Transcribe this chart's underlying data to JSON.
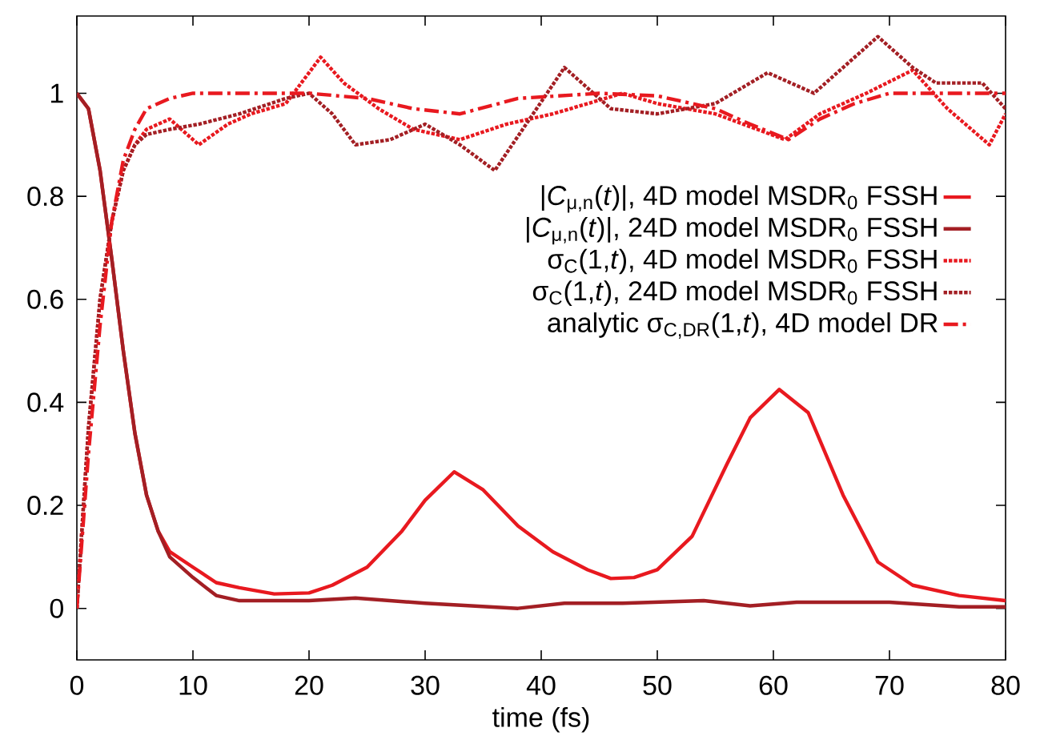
{
  "chart_data": {
    "type": "line",
    "xlabel": "time (fs)",
    "xlim": [
      0,
      80
    ],
    "ylim": [
      -0.1,
      1.15
    ],
    "xticks": [
      0,
      10,
      20,
      30,
      40,
      50,
      60,
      70,
      80
    ],
    "yticks": [
      0,
      0.2,
      0.4,
      0.6,
      0.8,
      1
    ],
    "legend": "right",
    "grid": false,
    "marker": "none",
    "series": [
      {
        "name": "|*C*$_{μ,n}$(*t*)|, 4D model MSDR$_{0}$ FSSH",
        "color": "#e8191f",
        "line_style": "solid",
        "x": [
          0,
          1,
          2,
          3,
          4,
          5,
          6,
          7,
          8,
          10,
          12,
          14,
          17,
          20,
          22,
          25,
          28,
          30,
          32.5,
          35,
          38,
          41,
          44,
          46,
          48,
          50,
          53,
          56,
          58,
          60.5,
          63,
          66,
          69,
          72,
          76,
          80
        ],
        "values": [
          1,
          0.97,
          0.85,
          0.68,
          0.5,
          0.34,
          0.22,
          0.15,
          0.11,
          0.08,
          0.05,
          0.04,
          0.028,
          0.03,
          0.045,
          0.08,
          0.15,
          0.21,
          0.265,
          0.23,
          0.16,
          0.11,
          0.075,
          0.058,
          0.06,
          0.075,
          0.14,
          0.28,
          0.37,
          0.425,
          0.38,
          0.22,
          0.09,
          0.045,
          0.025,
          0.015
        ]
      },
      {
        "name": "|*C*$_{μ,n}$(*t*)|, 24D model MSDR$_{0}$ FSSH",
        "color": "#a31f24",
        "line_style": "solid",
        "x": [
          0,
          1,
          2,
          3,
          4,
          5,
          6,
          7,
          8,
          10,
          12,
          14,
          20,
          24,
          30,
          38,
          42,
          47,
          54,
          58,
          62,
          70,
          76,
          80
        ],
        "values": [
          1,
          0.97,
          0.85,
          0.68,
          0.5,
          0.34,
          0.22,
          0.15,
          0.1,
          0.06,
          0.025,
          0.015,
          0.015,
          0.02,
          0.01,
          0.0,
          0.01,
          0.01,
          0.015,
          0.005,
          0.012,
          0.012,
          0.003,
          0.003
        ]
      },
      {
        "name": "σ$_{C}$(1,*t*), 4D model MSDR$_{0}$ FSSH",
        "color": "#e8191f",
        "line_style": "dotted",
        "x": [
          0,
          1,
          2,
          3,
          4,
          5,
          6,
          8,
          10.5,
          13,
          15,
          18,
          21,
          23,
          26,
          29,
          33,
          37,
          41,
          44,
          47,
          50,
          55,
          61,
          64,
          68,
          72,
          75,
          78.6,
          80
        ],
        "values": [
          0,
          0.35,
          0.6,
          0.75,
          0.85,
          0.9,
          0.93,
          0.95,
          0.9,
          0.94,
          0.96,
          0.98,
          1.07,
          1.02,
          0.97,
          0.93,
          0.91,
          0.94,
          0.96,
          0.98,
          1.0,
          0.98,
          0.96,
          0.91,
          0.96,
          1.0,
          1.045,
          0.97,
          0.9,
          0.96
        ]
      },
      {
        "name": "σ$_{C}$(1,*t*), 24D model MSDR$_{0}$ FSSH",
        "color": "#a31f24",
        "line_style": "dotted",
        "x": [
          0,
          1,
          2,
          3,
          4,
          5,
          6,
          8,
          10.5,
          14,
          18,
          20,
          22,
          24,
          27,
          30,
          33,
          36,
          39,
          42,
          46,
          50,
          55,
          59.5,
          63.5,
          66,
          69,
          72,
          74,
          78,
          80
        ],
        "values": [
          0,
          0.35,
          0.6,
          0.75,
          0.85,
          0.9,
          0.92,
          0.93,
          0.94,
          0.96,
          0.99,
          1.0,
          0.96,
          0.9,
          0.91,
          0.94,
          0.9,
          0.85,
          0.95,
          1.05,
          0.97,
          0.96,
          0.98,
          1.04,
          1.0,
          1.05,
          1.11,
          1.05,
          1.02,
          1.02,
          0.97
        ]
      },
      {
        "name": "analytic σ$_{C,DR}$(1,*t*), 4D model DR",
        "color": "#e8191f",
        "line_style": "dashdotted",
        "x": [
          0,
          1,
          2,
          3,
          4,
          5,
          6,
          8,
          10,
          20,
          25,
          29,
          33,
          38,
          45,
          50,
          55,
          58,
          61.3,
          64,
          67,
          70,
          80
        ],
        "values": [
          0,
          0.3,
          0.55,
          0.75,
          0.87,
          0.93,
          0.97,
          0.99,
          1.0,
          1.0,
          0.99,
          0.97,
          0.96,
          0.99,
          1.0,
          0.995,
          0.97,
          0.94,
          0.91,
          0.95,
          0.98,
          1.0,
          1.0
        ]
      }
    ]
  }
}
